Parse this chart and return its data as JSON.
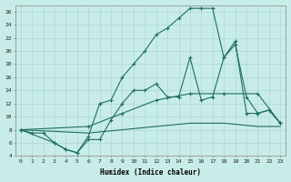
{
  "xlabel": "Humidex (Indice chaleur)",
  "bg_color": "#c8ece8",
  "line_color": "#1e6e64",
  "grid_color": "#aad8d4",
  "xlim": [
    -0.5,
    23.5
  ],
  "ylim": [
    4,
    27
  ],
  "xticks": [
    0,
    1,
    2,
    3,
    4,
    5,
    6,
    7,
    8,
    9,
    10,
    11,
    12,
    13,
    14,
    15,
    16,
    17,
    18,
    19,
    20,
    21,
    22,
    23
  ],
  "yticks": [
    4,
    6,
    8,
    10,
    12,
    14,
    16,
    18,
    20,
    22,
    24,
    26
  ],
  "line1_x": [
    0,
    1,
    2,
    3,
    4,
    5,
    6,
    7,
    8,
    9,
    10,
    11,
    12,
    13,
    14,
    15,
    16,
    17,
    18,
    19,
    20,
    21,
    22,
    23
  ],
  "line1_y": [
    8,
    7.5,
    7.5,
    6,
    5,
    4.5,
    7,
    12,
    12.5,
    16,
    18,
    20,
    22.5,
    23.5,
    25,
    26.5,
    26.5,
    26.5,
    19,
    21.5,
    10.5,
    10.5,
    11,
    9
  ],
  "line2_x": [
    0,
    3,
    4,
    5,
    6,
    7,
    8,
    9,
    10,
    11,
    12,
    13,
    14,
    15,
    16,
    17,
    18,
    19,
    20,
    21,
    22,
    23
  ],
  "line2_y": [
    8,
    6,
    5,
    4.5,
    6.5,
    6.5,
    9.5,
    12,
    14,
    14,
    15,
    13,
    13,
    19,
    12.5,
    13,
    19,
    21,
    13,
    10.5,
    11,
    9
  ],
  "line3_x": [
    0,
    6,
    9,
    12,
    15,
    18,
    21,
    23
  ],
  "line3_y": [
    8,
    8.5,
    10.5,
    12.5,
    13.5,
    13.5,
    13.5,
    9
  ],
  "line4_x": [
    0,
    6,
    9,
    12,
    15,
    18,
    21,
    23
  ],
  "line4_y": [
    8,
    7.5,
    8,
    8.5,
    9,
    9,
    8.5,
    8.5
  ]
}
